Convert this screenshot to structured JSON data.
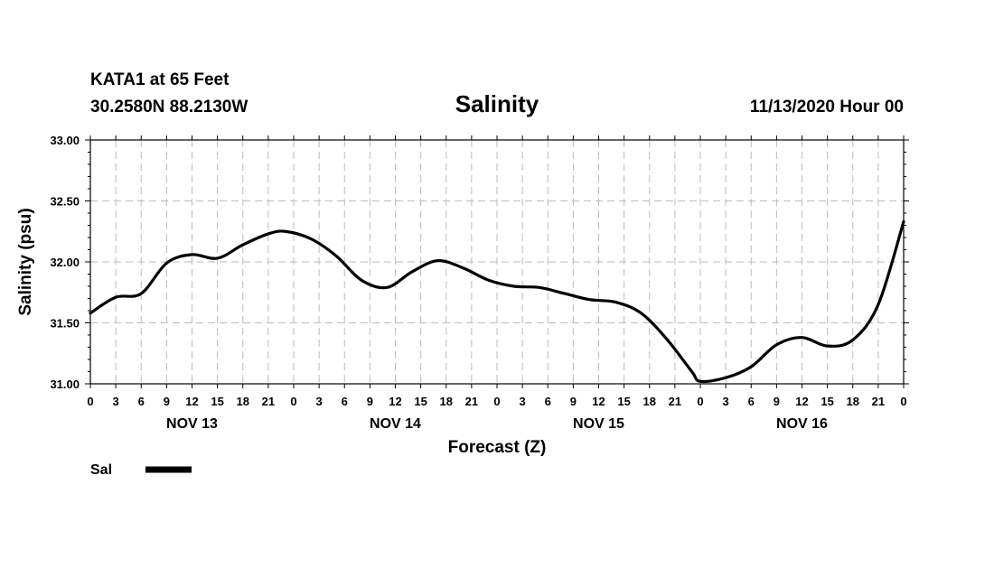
{
  "header": {
    "station": "KATA1 at 65 Feet",
    "coords": "30.2580N 88.2130W",
    "title": "Salinity",
    "datetime": "11/13/2020 Hour 00"
  },
  "legend": {
    "label": "Sal"
  },
  "colors": {
    "line": "#000000",
    "grid": "#bbbbbb",
    "axis": "#000000",
    "background": "#ffffff"
  },
  "chart_data": {
    "type": "line",
    "title": "Salinity",
    "xlabel": "Forecast (Z)",
    "ylabel": "Salinity (psu)",
    "ylim": [
      31.0,
      33.0
    ],
    "xlim": [
      0,
      96
    ],
    "yticks": [
      31.0,
      31.5,
      32.0,
      32.5,
      33.0
    ],
    "ytick_labels": [
      "31.00",
      "31.50",
      "32.00",
      "32.50",
      "33.00"
    ],
    "x_hour_labels": [
      "0",
      "3",
      "6",
      "9",
      "12",
      "15",
      "18",
      "21",
      "0",
      "3",
      "6",
      "9",
      "12",
      "15",
      "18",
      "21",
      "0",
      "3",
      "6",
      "9",
      "12",
      "15",
      "18",
      "21",
      "0",
      "3",
      "6",
      "9",
      "12",
      "15",
      "18",
      "21",
      "0"
    ],
    "day_labels": [
      {
        "label": "NOV 13",
        "hour": 12
      },
      {
        "label": "NOV 14",
        "hour": 36
      },
      {
        "label": "NOV 15",
        "hour": 60
      },
      {
        "label": "NOV 16",
        "hour": 84
      }
    ],
    "grid": true,
    "legend_position": "bottom-left",
    "series": [
      {
        "name": "Sal",
        "x": [
          0,
          3,
          6,
          9,
          12,
          15,
          18,
          21,
          23,
          26,
          29,
          32,
          35,
          38,
          41,
          44,
          47,
          50,
          53,
          56,
          59,
          62,
          65,
          68,
          71,
          72,
          75,
          78,
          81,
          84,
          87,
          90,
          93,
          96
        ],
        "values": [
          31.58,
          31.71,
          31.74,
          31.99,
          32.06,
          32.03,
          32.14,
          32.23,
          32.25,
          32.19,
          32.05,
          31.85,
          31.79,
          31.92,
          32.01,
          31.95,
          31.85,
          31.8,
          31.79,
          31.74,
          31.69,
          31.67,
          31.58,
          31.37,
          31.1,
          31.02,
          31.05,
          31.14,
          31.32,
          31.38,
          31.31,
          31.36,
          31.65,
          32.33
        ]
      }
    ]
  }
}
